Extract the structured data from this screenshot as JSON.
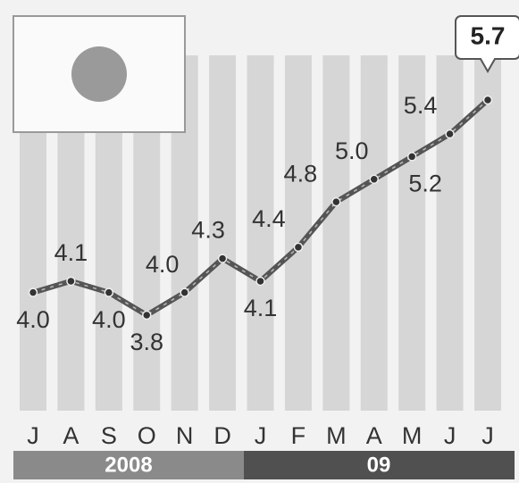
{
  "chart_data": {
    "type": "line",
    "categories": [
      "J",
      "A",
      "S",
      "O",
      "N",
      "D",
      "J",
      "F",
      "M",
      "A",
      "M",
      "J",
      "J"
    ],
    "values": [
      4.0,
      4.1,
      4.0,
      3.8,
      4.0,
      4.3,
      4.1,
      4.4,
      4.8,
      5.0,
      5.2,
      5.4,
      5.7
    ],
    "value_labels": [
      "4.0",
      "4.1",
      "4.0",
      "3.8",
      "4.0",
      "4.3",
      "4.1",
      "4.4",
      "4.8",
      "5.0",
      "5.2",
      "5.4",
      "5.7"
    ],
    "year_labels": [
      "2008",
      "09"
    ],
    "color": "#555555"
  }
}
